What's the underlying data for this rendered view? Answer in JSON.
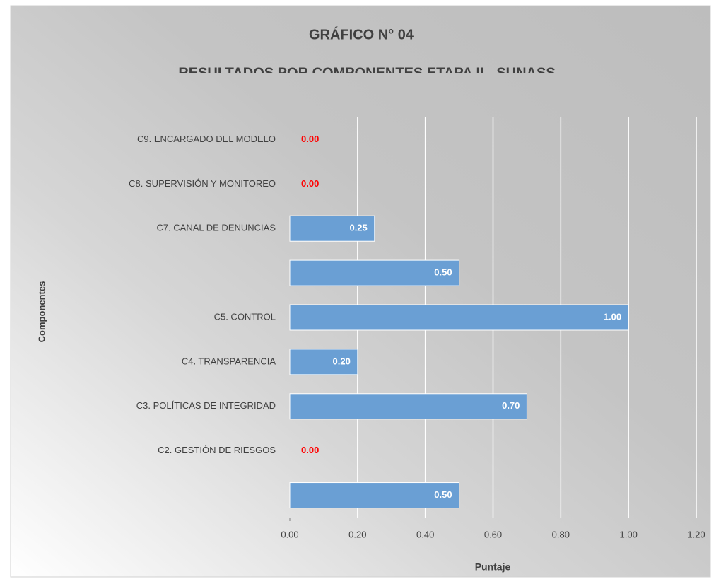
{
  "chart_data": {
    "type": "bar",
    "orientation": "horizontal",
    "title": "GRÁFICO N° 04",
    "subtitle": "RESULTADOS POR COMPONENTES ETAPA II - SUNASS",
    "y_label": "Componentes",
    "x_label": "Puntaje",
    "categories": [
      null,
      "C2. GESTIÓN DE RIESGOS",
      "C3. POLÍTICAS DE INTEGRIDAD",
      "C4. TRANSPARENCIA",
      "C5. CONTROL",
      null,
      "C7. CANAL DE DENUNCIAS",
      "C8. SUPERVISIÓN Y MONITOREO",
      "C9. ENCARGADO DEL MODELO"
    ],
    "values": [
      0.5,
      0,
      0.7,
      0.2,
      1.0,
      0.5,
      0.25,
      0,
      0
    ],
    "value_labels": [
      "0.50",
      "0.00",
      "0.70",
      "0.20",
      "1.00",
      "0.50",
      "0.25",
      "0.00",
      "0.00"
    ],
    "color": "#6a9fd4",
    "zero_label_color": "#ff0000",
    "xlim": [
      0,
      1.2
    ],
    "xticks": [
      {
        "value": 0,
        "label": "0.00"
      },
      {
        "value": 0.2,
        "label": "0.20"
      },
      {
        "value": 0.4,
        "label": "0.40"
      },
      {
        "value": 0.6,
        "label": "0.60"
      },
      {
        "value": 0.8,
        "label": "0.80"
      },
      {
        "value": 1.0,
        "label": "1.00"
      },
      {
        "value": 1.2,
        "label": "1.20"
      }
    ],
    "grid": true
  }
}
